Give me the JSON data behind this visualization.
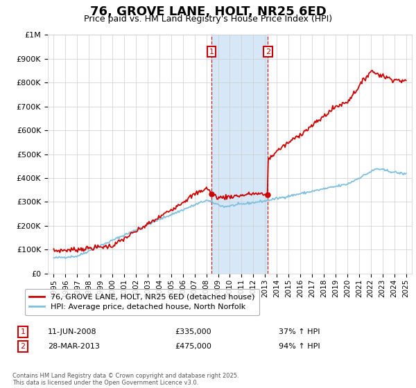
{
  "title": "76, GROVE LANE, HOLT, NR25 6ED",
  "subtitle": "Price paid vs. HM Land Registry's House Price Index (HPI)",
  "ylabel_ticks": [
    "£0",
    "£100K",
    "£200K",
    "£300K",
    "£400K",
    "£500K",
    "£600K",
    "£700K",
    "£800K",
    "£900K",
    "£1M"
  ],
  "ytick_values": [
    0,
    100000,
    200000,
    300000,
    400000,
    500000,
    600000,
    700000,
    800000,
    900000,
    1000000
  ],
  "xlim": [
    1994.5,
    2025.5
  ],
  "ylim": [
    0,
    1000000
  ],
  "hpi_color": "#7fbfdf",
  "price_color": "#cc0000",
  "marker1_date": 2008.44,
  "marker2_date": 2013.23,
  "transaction1": {
    "label": "1",
    "date": "11-JUN-2008",
    "price": "£335,000",
    "hpi": "37% ↑ HPI"
  },
  "transaction2": {
    "label": "2",
    "date": "28-MAR-2013",
    "price": "£475,000",
    "hpi": "94% ↑ HPI"
  },
  "legend_price": "76, GROVE LANE, HOLT, NR25 6ED (detached house)",
  "legend_hpi": "HPI: Average price, detached house, North Norfolk",
  "footer": "Contains HM Land Registry data © Crown copyright and database right 2025.\nThis data is licensed under the Open Government Licence v3.0.",
  "background_color": "#ffffff",
  "plot_bg": "#ffffff",
  "grid_color": "#cccccc",
  "shaded_region_color": "#d6e8f7",
  "title_fontsize": 13,
  "subtitle_fontsize": 9,
  "tick_fontsize": 8,
  "legend_fontsize": 8
}
